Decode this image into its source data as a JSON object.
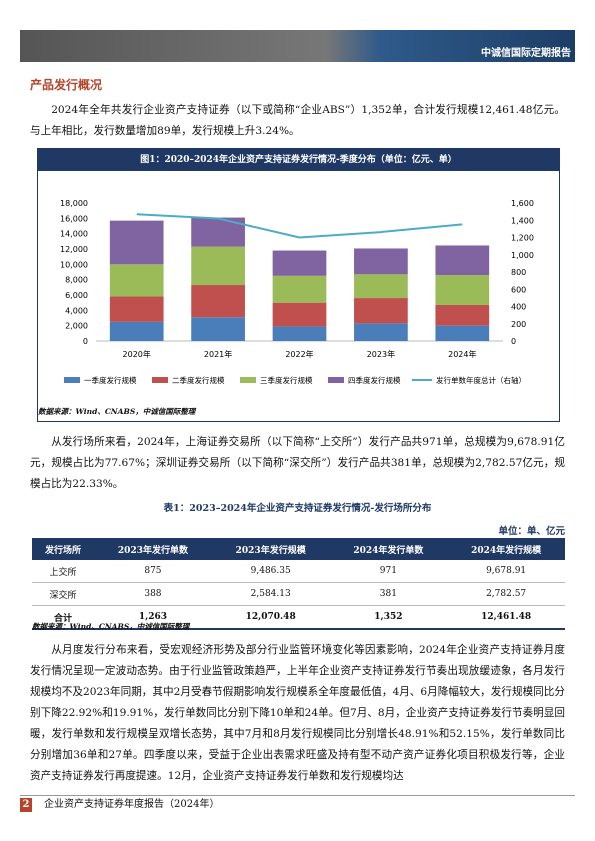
{
  "header": {
    "title": "中诚信国际定期报告"
  },
  "section": {
    "title": "产品发行概况"
  },
  "paragraphs": [
    "2024年全年共发行企业资产支持证券（以下或简称“企业ABS”）1,352单，合计发行规模12,461.48亿元。与上年相比，发行数量增加89单，发行规模上升3.24%。",
    "从发行场所来看，2024年，上海证券交易所（以下简称“上交所”）发行产品共971单，总规模为9,678.91亿元，规模占比为77.67%；深圳证券交易所（以下简称“深交所”）发行产品共381单，总规模为2,782.57亿元，规模占比为22.33%。",
    "从月度发行分布来看，受宏观经济形势及部分行业监管环境变化等因素影响，2024年企业资产支持证券月度发行情况呈现一定波动态势。由于行业监管政策趋严，上半年企业资产支持证券发行节奏出现放缓迹象，各月发行规模均不及2023年同期，其中2月受春节假期影响发行规模系全年度最低值，4月、6月降幅较大，发行规模同比分别下降22.92%和19.91%，发行单数同比分别下降10单和24单。但7月、8月，企业资产支持证券发行节奏明显回暖，发行单数和发行规模呈双增长态势，其中7月和8月发行规模同比分别增长48.91%和52.15%，发行单数同比分别增加36单和27单。四季度以来，受益于企业出表需求旺盛及持有型不动产资产证券化项目积极发行等，企业资产支持证券发行再度提速。12月，企业资产支持证券发行单数和发行规模均达"
  ],
  "figure": {
    "caption": "图1：2020–2024年企业资产支持证券发行情况-季度分布（单位：亿元、单）",
    "source": "数据来源：Wind、CNABS，中诚信国际整理"
  },
  "chart_data": {
    "type": "stacked-bar-line",
    "categories": [
      "2020年",
      "2021年",
      "2022年",
      "2023年",
      "2024年"
    ],
    "series": [
      {
        "name": "一季度发行规模",
        "color": "#4a7ebb",
        "values": [
          2500,
          3100,
          1900,
          2300,
          2000
        ]
      },
      {
        "name": "二季度发行规模",
        "color": "#c0504d",
        "values": [
          3300,
          4200,
          3100,
          3300,
          2700
        ]
      },
      {
        "name": "三季度发行规模",
        "color": "#9bbb59",
        "values": [
          4200,
          5000,
          3500,
          3100,
          3900
        ]
      },
      {
        "name": "四季度发行规模",
        "color": "#8064a2",
        "values": [
          5700,
          3800,
          3300,
          3370,
          3860
        ]
      },
      {
        "name": "发行单数年度总计（右轴）",
        "color": "#4bacc6",
        "type": "line",
        "axis": "y2",
        "values": [
          1470,
          1420,
          1200,
          1263,
          1352
        ]
      }
    ],
    "ylim": [
      0,
      18000
    ],
    "yticks": [
      0,
      {
        "value": 2000,
        "label": "2,000"
      },
      {
        "value": 4000,
        "label": "4,000"
      },
      {
        "value": 6000,
        "label": "6,000"
      },
      {
        "value": 8000,
        "label": "8,000"
      },
      {
        "value": 10000,
        "label": "10,000"
      },
      {
        "value": 12000,
        "label": "12,000"
      },
      {
        "value": 14000,
        "label": "14,000"
      },
      {
        "value": 16000,
        "label": "16,000"
      },
      {
        "value": 18000,
        "label": "18,000"
      }
    ],
    "y2lim": [
      0,
      1600
    ],
    "y2ticks": [
      0,
      200,
      400,
      600,
      800,
      {
        "value": 1000,
        "label": "1,000"
      },
      {
        "value": 1200,
        "label": "1,200"
      },
      {
        "value": 1400,
        "label": "1,400"
      },
      {
        "value": 1600,
        "label": "1,600"
      }
    ],
    "legend": "bottom"
  },
  "table": {
    "caption": "表1：2023–2024年企业资产支持证券发行情况-发行场所分布",
    "unit": "单位：单、亿元",
    "header": [
      "发行场所",
      "2023年发行单数",
      "2023年发行规模",
      "2024年发行单数",
      "2024年发行规模"
    ],
    "rows": [
      [
        "上交所",
        "875",
        "9,486.35",
        "971",
        "9,678.91"
      ],
      [
        "深交所",
        "388",
        "2,584.13",
        "381",
        "2,782.57"
      ],
      [
        "合计",
        "1,263",
        "12,070.48",
        "1,352",
        "12,461.48"
      ]
    ],
    "source": "数据来源：Wind、CNABS，中诚信国际整理"
  },
  "footer": {
    "page": "2",
    "title": "企业资产支持证券年度报告（2024年）"
  }
}
